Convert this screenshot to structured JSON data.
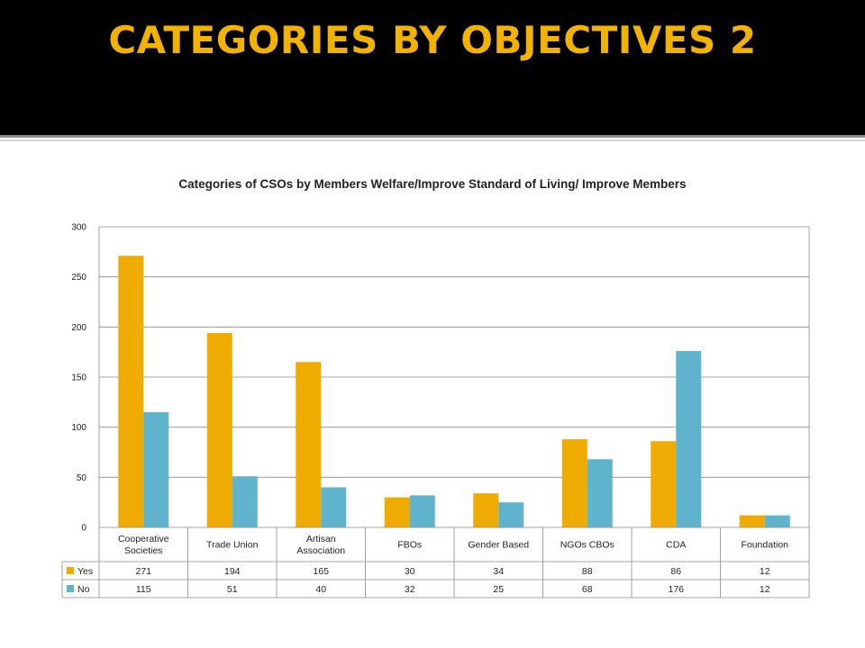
{
  "slide": {
    "title": "CATEGORIES BY OBJECTIVES 2"
  },
  "colors": {
    "header_bg": "#000000",
    "title": "#f2b200",
    "yes": "#f0ab00",
    "no": "#5fb3cc",
    "grid": "#8a8a8a"
  },
  "chart_data": {
    "type": "bar",
    "title": "Categories of CSOs by Members Welfare/Improve Standard of Living/ Improve Members",
    "categories": [
      [
        "Cooperative",
        "Societies"
      ],
      [
        "Trade Union"
      ],
      [
        "Artisan",
        "Association"
      ],
      [
        "FBOs"
      ],
      [
        "Gender Based"
      ],
      [
        "NGOs CBOs"
      ],
      [
        "CDA"
      ],
      [
        "Foundation"
      ]
    ],
    "series": [
      {
        "name": "Yes",
        "color": "#f0ab00",
        "values": [
          271,
          194,
          165,
          30,
          34,
          88,
          86,
          12
        ]
      },
      {
        "name": "No",
        "color": "#5fb3cc",
        "values": [
          115,
          51,
          40,
          32,
          25,
          68,
          176,
          12
        ]
      }
    ],
    "ylim": [
      0,
      300
    ],
    "yticks": [
      0,
      50,
      100,
      150,
      200,
      250,
      300
    ],
    "grid": true,
    "legend": "data-table"
  }
}
